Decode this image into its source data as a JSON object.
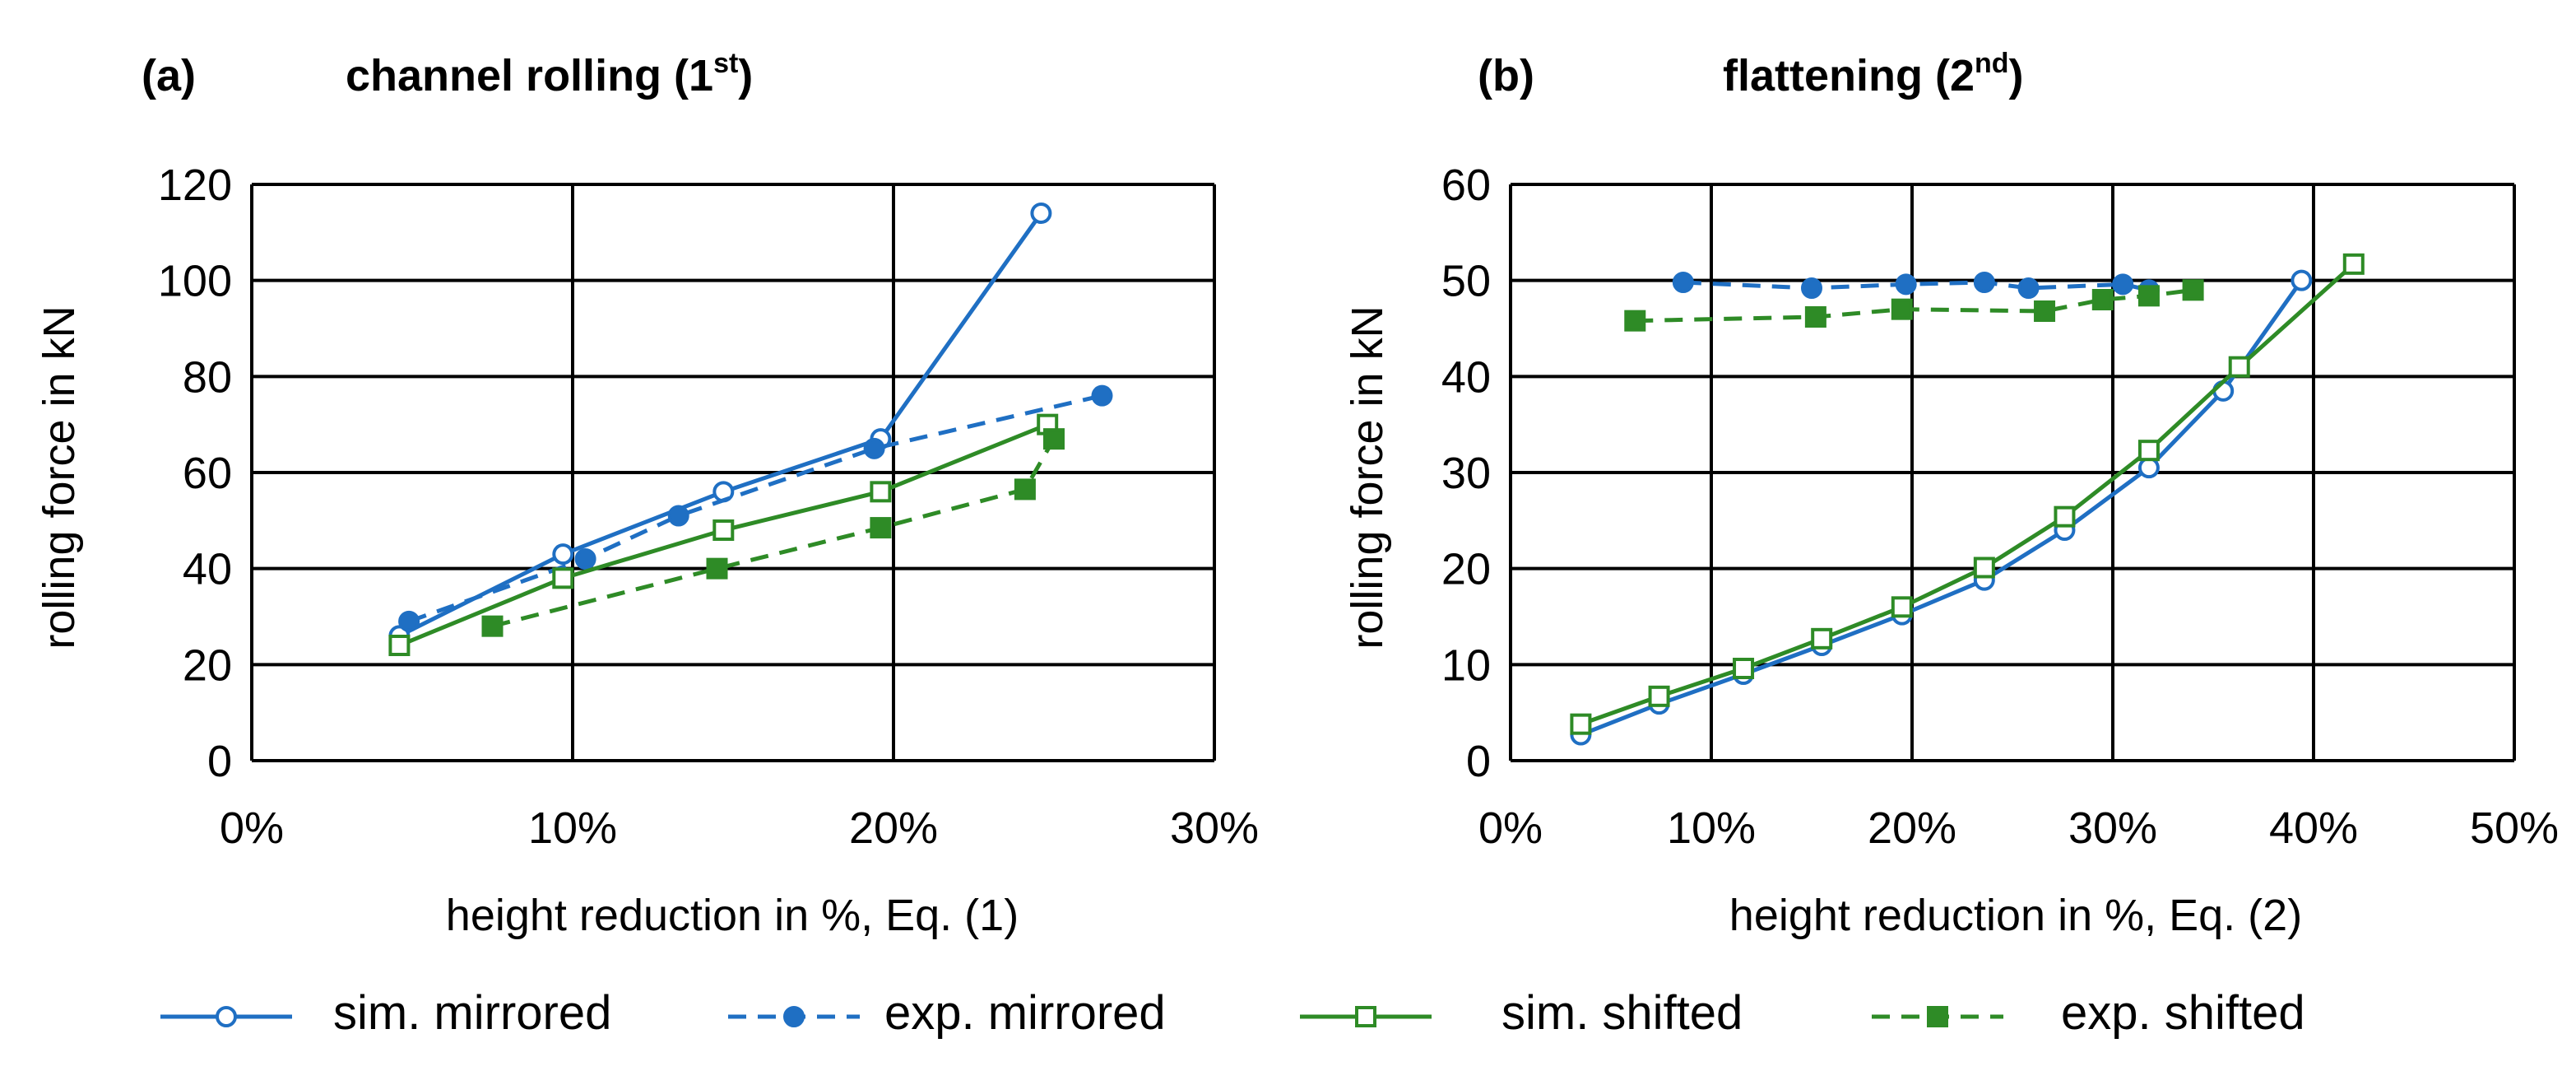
{
  "figure": {
    "colors": {
      "blue": "#1f6fc3",
      "green": "#2e8b26",
      "grid": "#000000"
    },
    "legend": [
      {
        "label": "sim. mirrored",
        "color": "#1f6fc3",
        "dash": false,
        "marker": "circle",
        "filled": false
      },
      {
        "label": "exp. mirrored",
        "color": "#1f6fc3",
        "dash": true,
        "marker": "circle",
        "filled": true
      },
      {
        "label": "sim. shifted",
        "color": "#2e8b26",
        "dash": false,
        "marker": "square",
        "filled": false
      },
      {
        "label": "exp. shifted",
        "color": "#2e8b26",
        "dash": true,
        "marker": "square",
        "filled": true
      }
    ]
  },
  "chart_data": [
    {
      "type": "line",
      "panel_label": "(a)",
      "title": "channel rolling (1",
      "title_sup": "st",
      "title_end": ")",
      "xlabel": "height reduction in %, Eq. (1)",
      "ylabel": "rolling force in kN",
      "xlim": [
        0,
        30
      ],
      "ylim": [
        0,
        120
      ],
      "xticks": [
        0,
        10,
        20,
        30
      ],
      "xtick_labels": [
        "0%",
        "10%",
        "20%",
        "30%"
      ],
      "yticks": [
        0,
        20,
        40,
        60,
        80,
        100,
        120
      ],
      "ytick_labels": [
        "0",
        "20",
        "40",
        "60",
        "80",
        "100",
        "120"
      ],
      "grid": true,
      "series": [
        {
          "name": "sim. mirrored",
          "x": [
            4.6,
            9.7,
            14.7,
            19.6,
            24.6
          ],
          "y": [
            26,
            43,
            56,
            67,
            114
          ]
        },
        {
          "name": "exp. mirrored",
          "x": [
            4.9,
            10.4,
            13.3,
            19.4,
            26.5
          ],
          "y": [
            29,
            42,
            51,
            65,
            76
          ]
        },
        {
          "name": "sim. shifted",
          "x": [
            4.6,
            9.7,
            14.7,
            19.6,
            24.8
          ],
          "y": [
            24,
            38,
            48,
            56,
            70
          ]
        },
        {
          "name": "exp. shifted",
          "x": [
            7.5,
            14.5,
            19.6,
            24.1,
            25.0
          ],
          "y": [
            28,
            40,
            48.5,
            56.5,
            67
          ]
        }
      ]
    },
    {
      "type": "line",
      "panel_label": "(b)",
      "title": "flattening (2",
      "title_sup": "nd",
      "title_end": ")",
      "xlabel": "height reduction in %, Eq. (2)",
      "ylabel": "rolling force in kN",
      "xlim": [
        0,
        50
      ],
      "ylim": [
        0,
        60
      ],
      "xticks": [
        0,
        10,
        20,
        30,
        40,
        50
      ],
      "xtick_labels": [
        "0%",
        "10%",
        "20%",
        "30%",
        "40%",
        "50%"
      ],
      "yticks": [
        0,
        10,
        20,
        30,
        40,
        50,
        60
      ],
      "ytick_labels": [
        "0",
        "10",
        "20",
        "30",
        "40",
        "50",
        "60"
      ],
      "grid": true,
      "series": [
        {
          "name": "sim. mirrored",
          "x": [
            3.5,
            7.4,
            11.6,
            15.5,
            19.5,
            23.6,
            27.6,
            31.8,
            35.5,
            39.4
          ],
          "y": [
            2.7,
            5.9,
            9.0,
            12.0,
            15.2,
            18.8,
            24.0,
            30.5,
            38.5,
            50.0
          ]
        },
        {
          "name": "exp. mirrored",
          "x": [
            8.6,
            15.0,
            19.7,
            23.6,
            25.8,
            30.5,
            31.8
          ],
          "y": [
            49.8,
            49.2,
            49.6,
            49.8,
            49.2,
            49.6,
            49.0
          ]
        },
        {
          "name": "sim. shifted",
          "x": [
            3.5,
            7.4,
            11.6,
            15.5,
            19.5,
            23.6,
            27.6,
            31.8,
            36.3,
            42.0
          ],
          "y": [
            3.8,
            6.7,
            9.6,
            12.7,
            16.0,
            20.1,
            25.4,
            32.3,
            41.0,
            51.7
          ]
        },
        {
          "name": "exp. shifted",
          "x": [
            6.2,
            15.2,
            19.5,
            26.6,
            29.5,
            31.8,
            34.0
          ],
          "y": [
            45.8,
            46.2,
            47.0,
            46.8,
            48.0,
            48.4,
            49.0
          ]
        }
      ]
    }
  ]
}
